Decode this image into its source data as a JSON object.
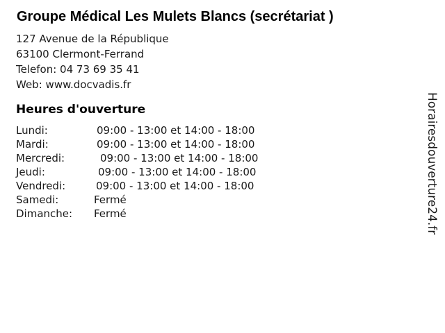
{
  "business": {
    "name": "Groupe Médical Les Mulets Blancs (secrétariat )",
    "address_line1": "127 Avenue de la République",
    "address_line2": "63100 Clermont-Ferrand",
    "phone_label": "Telefon:",
    "phone_number": "04 73 69 35 41",
    "web_label": "Web:",
    "website": "www.docvadis.fr"
  },
  "opening_hours": {
    "heading": "Heures d'ouverture",
    "rows": [
      {
        "day": "Lundi:",
        "hours": "09:00 - 13:00 et 14:00 - 18:00"
      },
      {
        "day": "Mardi:",
        "hours": "09:00 - 13:00 et 14:00 - 18:00"
      },
      {
        "day": "Mercredi:",
        "hours": "09:00 - 13:00 et 14:00 - 18:00"
      },
      {
        "day": "Jeudi:",
        "hours": "09:00 - 13:00 et 14:00 - 18:00"
      },
      {
        "day": "Vendredi:",
        "hours": "09:00 - 13:00 et 14:00 - 18:00"
      },
      {
        "day": "Samedi:",
        "hours": "Fermé"
      },
      {
        "day": "Dimanche:",
        "hours": "Fermé"
      }
    ]
  },
  "watermark": "Horairesdouverture24.fr",
  "colors": {
    "background": "#ffffff",
    "title_text": "#000000",
    "body_text": "#1a1a1a"
  }
}
